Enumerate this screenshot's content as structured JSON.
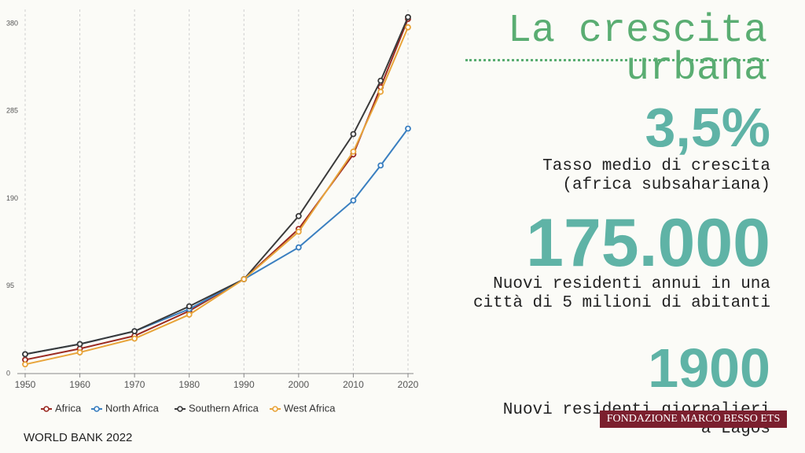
{
  "chart_data": {
    "type": "line",
    "x": [
      1950,
      1960,
      1970,
      1980,
      1990,
      2000,
      2010,
      2015,
      2020
    ],
    "series": [
      {
        "name": "Africa",
        "color": "#9b2a22",
        "values": [
          15,
          27,
          41,
          68,
          102.5,
          157,
          238,
          311,
          385
        ]
      },
      {
        "name": "North Africa",
        "color": "#3a7fc0",
        "values": [
          21,
          32,
          46,
          70,
          102.5,
          137,
          188,
          226,
          266
        ]
      },
      {
        "name": "Southern Africa",
        "color": "#3a3a3a",
        "values": [
          21,
          32,
          46,
          73,
          102.5,
          171,
          260,
          318,
          387
        ]
      },
      {
        "name": "West Africa",
        "color": "#e8a43a",
        "values": [
          10,
          23,
          38,
          64,
          102.5,
          154,
          241,
          306,
          376
        ]
      }
    ],
    "xlim": [
      1950,
      2020
    ],
    "xticks": [
      1950,
      1960,
      1970,
      1980,
      1990,
      2000,
      2010,
      2020
    ],
    "ylim": [
      0,
      390
    ],
    "yticks": [
      0,
      95,
      190,
      285,
      380
    ],
    "grid": true
  },
  "slide": {
    "title": "La crescita urbana",
    "stats": [
      {
        "value": "3,5%",
        "label": "Tasso medio di crescita\n(africa subsahariana)"
      },
      {
        "value": "175.000",
        "label": "Nuovi residenti annui in una\ncittà di 5 milioni di abitanti"
      },
      {
        "value": "1900",
        "label": "Nuovi residenti giornalieri\na Lagos"
      }
    ],
    "source": "WORLD BANK 2022",
    "logo": "FONDAZIONE MARCO BESSO ETS"
  }
}
